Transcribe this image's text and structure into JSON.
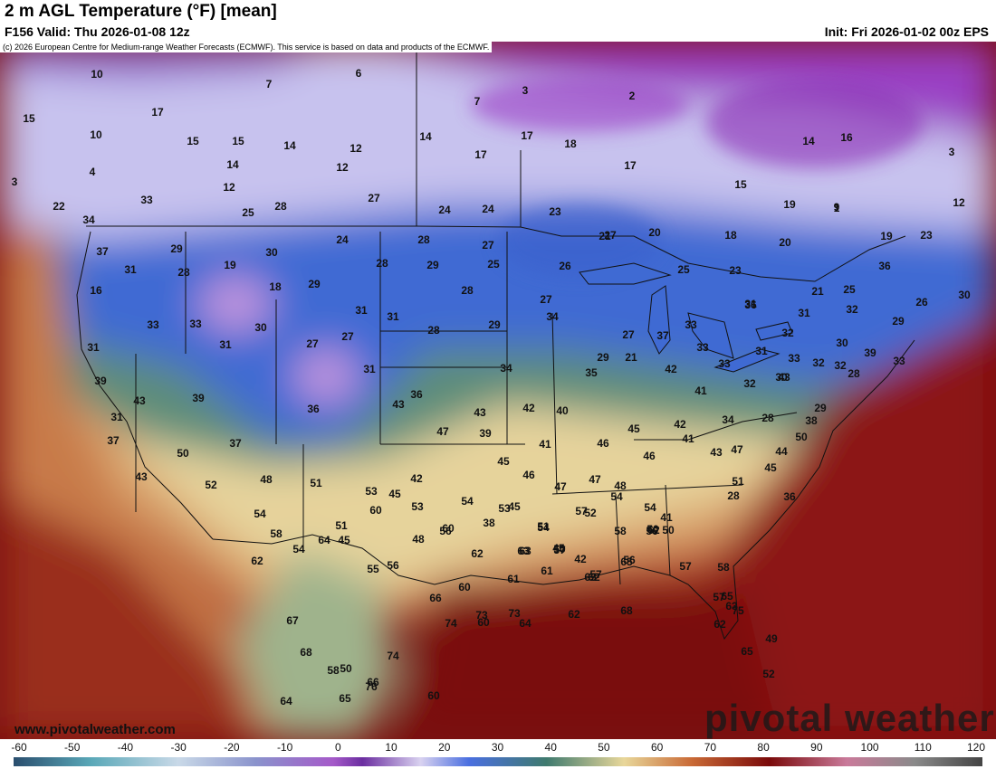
{
  "header": {
    "title": "2 m AGL Temperature (°F) [mean]",
    "valid": "F156 Valid: Thu 2026-01-08 12z",
    "init": "Init: Fri 2026-01-02 00z EPS"
  },
  "copyright": "(c) 2026 European Centre for Medium-range Weather Forecasts (ECMWF). This service is based on data and products of the ECMWF.",
  "footer": {
    "url": "www.pivotalweather.com",
    "logo": "pivotal weather"
  },
  "colors": {
    "arctic": "#9a3fc4",
    "cold": "#3a62cf",
    "cool": "#3f7a6e",
    "mild": "#e8d79a",
    "warm": "#c96a36",
    "hot": "#7a0a0a"
  },
  "colorbar": {
    "unit": "°F",
    "ticks": [
      "-60",
      "-50",
      "-40",
      "-30",
      "-20",
      "-10",
      "0",
      "10",
      "20",
      "30",
      "40",
      "50",
      "60",
      "70",
      "80",
      "90",
      "100",
      "110",
      "120"
    ]
  },
  "temperature_labels": [
    "10",
    "6",
    "7",
    "3",
    "7",
    "2",
    "15",
    "17",
    "15",
    "15",
    "14",
    "12",
    "12",
    "14",
    "14",
    "17",
    "18",
    "10",
    "14",
    "16",
    "17",
    "15",
    "3",
    "4",
    "3",
    "9",
    "12",
    "17",
    "19",
    "1",
    "12",
    "22",
    "33",
    "25",
    "28",
    "27",
    "24",
    "24",
    "23",
    "21",
    "27",
    "20",
    "18",
    "20",
    "19",
    "23",
    "34",
    "24",
    "28",
    "27",
    "25",
    "37",
    "29",
    "19",
    "30",
    "28",
    "29",
    "31",
    "28",
    "18",
    "29",
    "28",
    "26",
    "25",
    "23",
    "21",
    "25",
    "36",
    "26",
    "30",
    "16",
    "33",
    "33",
    "27",
    "31",
    "31",
    "28",
    "29",
    "27",
    "34",
    "36",
    "31",
    "29",
    "27",
    "37",
    "33",
    "31",
    "32",
    "32",
    "33",
    "31",
    "33",
    "32",
    "33",
    "30",
    "28",
    "35",
    "34",
    "29",
    "21",
    "31",
    "31",
    "30",
    "27",
    "31",
    "36",
    "39",
    "42",
    "41",
    "32",
    "30",
    "29",
    "31",
    "37",
    "43",
    "32",
    "33",
    "39",
    "43",
    "42",
    "40",
    "34",
    "28",
    "38",
    "43",
    "39",
    "47",
    "39",
    "37",
    "36",
    "43",
    "41",
    "46",
    "42",
    "45",
    "41",
    "43",
    "45",
    "50",
    "51",
    "47",
    "46",
    "47",
    "45",
    "46",
    "47",
    "48",
    "28",
    "36",
    "44",
    "42",
    "43",
    "50",
    "52",
    "48",
    "54",
    "53",
    "53",
    "51",
    "45",
    "48",
    "57",
    "54",
    "54",
    "41",
    "50",
    "60",
    "51",
    "54",
    "58",
    "50",
    "58",
    "51",
    "45",
    "52",
    "38",
    "42",
    "56",
    "56",
    "56",
    "56",
    "53",
    "55",
    "54",
    "45",
    "62",
    "60",
    "62",
    "63",
    "54",
    "45",
    "62",
    "62",
    "64",
    "63",
    "50",
    "57",
    "61",
    "57",
    "65",
    "57",
    "58",
    "66",
    "60",
    "61",
    "65",
    "75",
    "74",
    "73",
    "64",
    "62",
    "68",
    "65",
    "62",
    "68",
    "67",
    "73",
    "58",
    "65",
    "60",
    "63",
    "65",
    "49",
    "52",
    "57",
    "76",
    "64",
    "66",
    "50",
    "74",
    "60"
  ]
}
